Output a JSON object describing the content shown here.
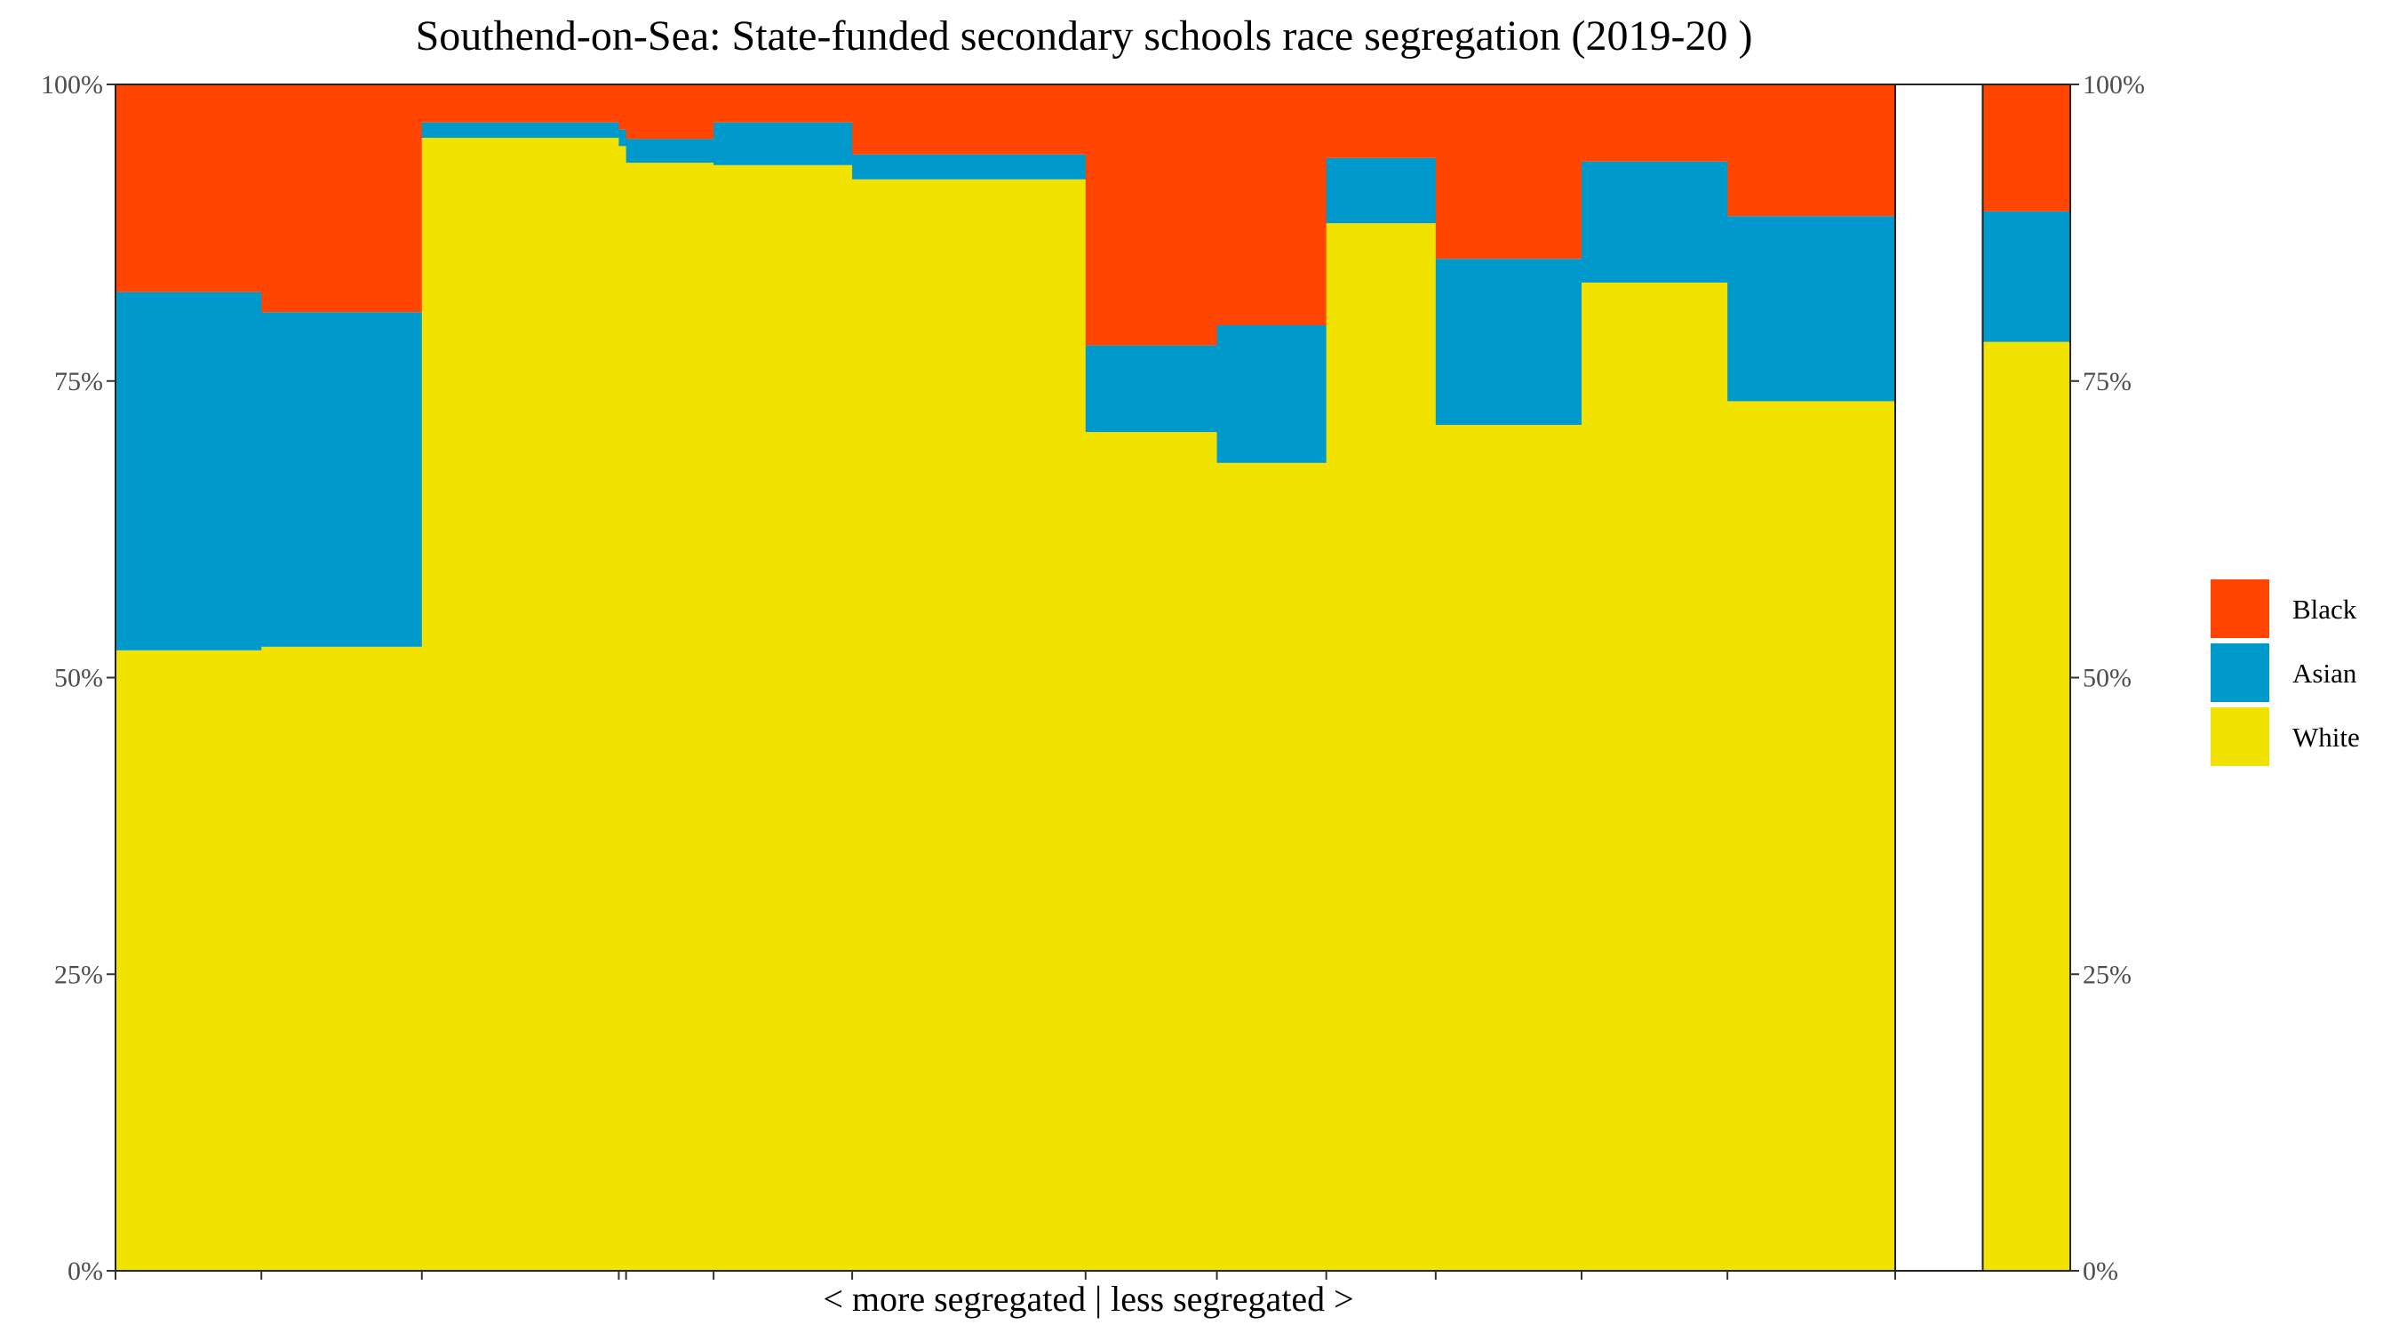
{
  "chart_data": {
    "type": "bar",
    "subtype": "variable-width stacked percentage bar (mosaic)",
    "title": "Southend-on-Sea: State-funded secondary schools race segregation (2019-20 )",
    "xlabel": "< more segregated | less segregated >",
    "ylabel": "",
    "ylim": [
      0,
      100
    ],
    "y_ticks": [
      "0%",
      "25%",
      "50%",
      "75%",
      "100%"
    ],
    "y_tick_values": [
      0,
      25,
      50,
      75,
      100
    ],
    "y_axis_sides": "left and right",
    "grid": false,
    "legend_position": "right",
    "series": [
      {
        "name": "Black",
        "color": "#FF4500"
      },
      {
        "name": "Asian",
        "color": "#0099CC"
      },
      {
        "name": "White",
        "color": "#F2E200"
      }
    ],
    "x_scale_max": 13.4,
    "schools": [
      {
        "x_start": 0.0,
        "x_end": 1.0,
        "white": 52.3,
        "asian": 30.2,
        "black": 17.5
      },
      {
        "x_start": 1.0,
        "x_end": 2.1,
        "white": 52.6,
        "asian": 28.2,
        "black": 19.2
      },
      {
        "x_start": 2.1,
        "x_end": 3.45,
        "white": 95.5,
        "asian": 1.3,
        "black": 3.2
      },
      {
        "x_start": 3.45,
        "x_end": 3.5,
        "white": 94.8,
        "asian": 1.4,
        "black": 3.8
      },
      {
        "x_start": 3.5,
        "x_end": 4.1,
        "white": 93.4,
        "asian": 2.0,
        "black": 4.6
      },
      {
        "x_start": 4.1,
        "x_end": 5.05,
        "white": 93.2,
        "asian": 3.6,
        "black": 3.2
      },
      {
        "x_start": 5.05,
        "x_end": 6.65,
        "white": 92.0,
        "asian": 2.1,
        "black": 5.9
      },
      {
        "x_start": 6.65,
        "x_end": 7.55,
        "white": 70.7,
        "asian": 7.3,
        "black": 22.0
      },
      {
        "x_start": 7.55,
        "x_end": 8.3,
        "white": 68.1,
        "asian": 11.6,
        "black": 20.3
      },
      {
        "x_start": 8.3,
        "x_end": 9.05,
        "white": 88.3,
        "asian": 5.5,
        "black": 6.2
      },
      {
        "x_start": 9.05,
        "x_end": 10.05,
        "white": 71.3,
        "asian": 14.0,
        "black": 14.7
      },
      {
        "x_start": 10.05,
        "x_end": 11.05,
        "white": 83.3,
        "asian": 10.2,
        "black": 6.5
      },
      {
        "x_start": 11.05,
        "x_end": 12.2,
        "white": 73.3,
        "asian": 15.6,
        "black": 11.1
      },
      {
        "x_start": 12.8,
        "x_end": 13.4,
        "white": 78.3,
        "asian": 11.0,
        "black": 10.7,
        "role": "overall average"
      }
    ],
    "x_tick_positions": [
      0.0,
      1.0,
      2.1,
      3.45,
      3.5,
      4.1,
      5.05,
      6.65,
      7.55,
      8.3,
      9.05,
      10.05,
      11.05,
      12.2
    ]
  }
}
